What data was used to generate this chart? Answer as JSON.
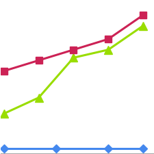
{
  "red_x": [
    0,
    1,
    2,
    3,
    4
  ],
  "red_y": [
    0.62,
    0.7,
    0.78,
    0.86,
    1.04
  ],
  "green_x": [
    0,
    1,
    2,
    3,
    4
  ],
  "green_y": [
    0.3,
    0.42,
    0.72,
    0.78,
    0.96
  ],
  "blue_x": [
    0,
    1.5,
    3.0,
    4.0
  ],
  "blue_y": [
    0.04,
    0.04,
    0.04,
    0.04
  ],
  "red_color": "#cc2255",
  "green_color": "#99dd00",
  "blue_color": "#4488ee",
  "red_marker": "s",
  "green_marker": "^",
  "blue_marker": "D",
  "red_markersize": 7,
  "green_markersize": 9,
  "blue_markersize": 6,
  "linewidth": 2.2,
  "background_color": "#ffffff",
  "grid_color": "#cccccc",
  "xlim": [
    -0.1,
    4.3
  ],
  "ylim": [
    0.0,
    1.15
  ]
}
